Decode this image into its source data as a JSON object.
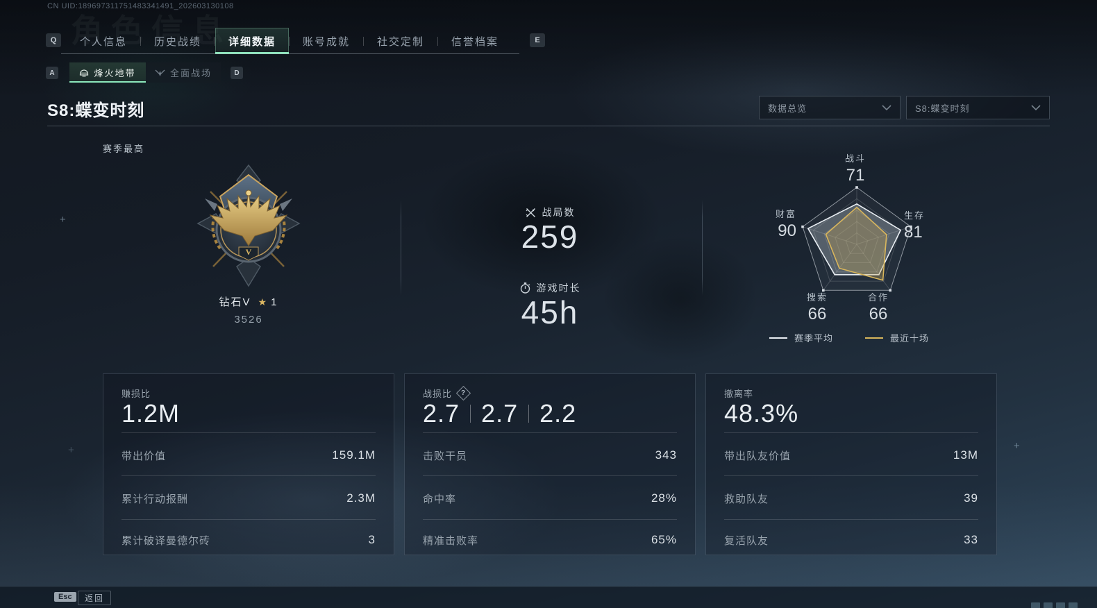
{
  "colors": {
    "accent_green": "#8ce8bc",
    "gold": "#d9b562"
  },
  "header": {
    "uid": "CN UID:189697311751483341491_202603130108",
    "watermark": "角色信息",
    "key_prev": "Q",
    "key_next": "E",
    "tabs": [
      {
        "label": "个人信息"
      },
      {
        "label": "历史战绩"
      },
      {
        "label": "详细数据",
        "active": true
      },
      {
        "label": "账号成就"
      },
      {
        "label": "社交定制"
      },
      {
        "label": "信誉档案"
      }
    ]
  },
  "subtabs": {
    "key_prev": "A",
    "key_next": "D",
    "items": [
      {
        "label": "烽火地带",
        "active": true
      },
      {
        "label": "全面战场"
      }
    ]
  },
  "season": {
    "title": "S8:蝶变时刻",
    "season_best_label": "赛季最高",
    "dropdown_overview": "数据总览",
    "dropdown_season": "S8:蝶变时刻"
  },
  "rank": {
    "name": "钻石V",
    "star": "★",
    "star_count": "1",
    "points": "3526"
  },
  "overview": {
    "matches_label": "战局数",
    "matches_value": "259",
    "playtime_label": "游戏时长",
    "playtime_value": "45h"
  },
  "chart_data": {
    "type": "radar",
    "categories": [
      "战斗",
      "生存",
      "合作",
      "搜索",
      "财富"
    ],
    "max": 100,
    "grid_levels": 5,
    "legend_position": "bottom",
    "series": [
      {
        "name": "赛季平均",
        "color": "#e9eef3",
        "fill": "rgba(205,214,223,0.30)",
        "values": [
          71,
          81,
          66,
          66,
          90
        ]
      },
      {
        "name": "最近十场",
        "color": "#d9b65c",
        "fill": "rgba(196,168,88,0.33)",
        "values": [
          65,
          55,
          78,
          52,
          57
        ]
      }
    ]
  },
  "cards": [
    {
      "title": "赚损比",
      "big_value": "1.2M",
      "rows": [
        {
          "label": "带出价值",
          "value": "159.1M"
        },
        {
          "label": "累计行动报酬",
          "value": "2.3M"
        },
        {
          "label": "累计破译曼德尔砖",
          "value": "3"
        }
      ]
    },
    {
      "title": "战损比",
      "help_icon": "?",
      "big_values": [
        "2.7",
        "2.7",
        "2.2"
      ],
      "rows": [
        {
          "label": "击败干员",
          "value": "343"
        },
        {
          "label": "命中率",
          "value": "28%"
        },
        {
          "label": "精准击败率",
          "value": "65%"
        }
      ]
    },
    {
      "title": "撤离率",
      "big_value": "48.3%",
      "rows": [
        {
          "label": "带出队友价值",
          "value": "13M"
        },
        {
          "label": "救助队友",
          "value": "39"
        },
        {
          "label": "复活队友",
          "value": "33"
        }
      ]
    }
  ],
  "footer": {
    "esc_key": "Esc",
    "back_label": "返回"
  }
}
